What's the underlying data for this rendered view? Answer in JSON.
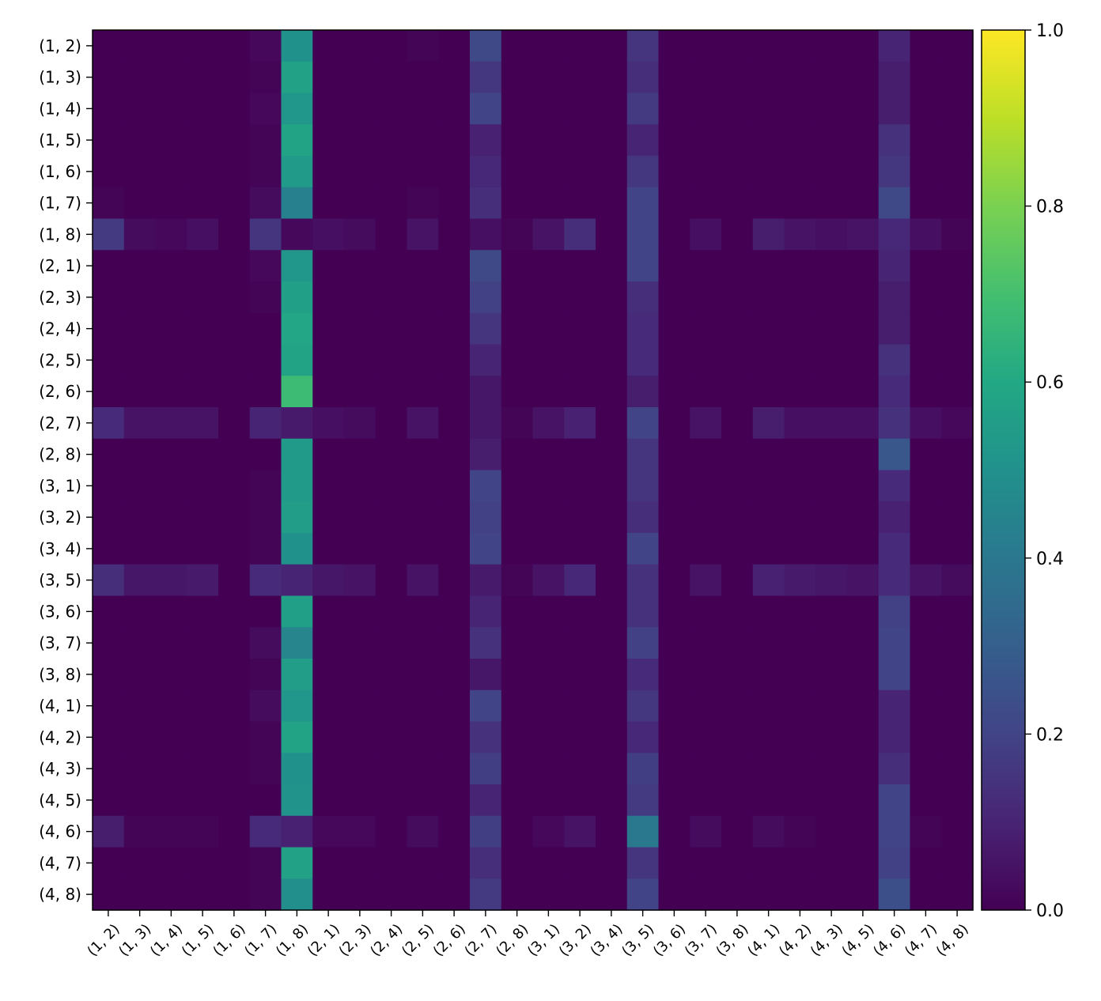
{
  "chart_data": {
    "type": "heatmap",
    "title": "",
    "xlabel": "",
    "ylabel": "",
    "colormap": "viridis",
    "vmin": 0.0,
    "vmax": 1.0,
    "colorbar_ticks": [
      "0.0",
      "0.2",
      "0.4",
      "0.6",
      "0.8",
      "1.0"
    ],
    "x_labels": [
      "(1, 2)",
      "(1, 3)",
      "(1, 4)",
      "(1, 5)",
      "(1, 6)",
      "(1, 7)",
      "(1, 8)",
      "(2, 1)",
      "(2, 3)",
      "(2, 4)",
      "(2, 5)",
      "(2, 6)",
      "(2, 7)",
      "(2, 8)",
      "(3, 1)",
      "(3, 2)",
      "(3, 4)",
      "(3, 5)",
      "(3, 6)",
      "(3, 7)",
      "(3, 8)",
      "(4, 1)",
      "(4, 2)",
      "(4, 3)",
      "(4, 5)",
      "(4, 6)",
      "(4, 7)",
      "(4, 8)"
    ],
    "y_labels": [
      "(1, 2)",
      "(1, 3)",
      "(1, 4)",
      "(1, 5)",
      "(1, 6)",
      "(1, 7)",
      "(1, 8)",
      "(2, 1)",
      "(2, 3)",
      "(2, 4)",
      "(2, 5)",
      "(2, 6)",
      "(2, 7)",
      "(2, 8)",
      "(3, 1)",
      "(3, 2)",
      "(3, 4)",
      "(3, 5)",
      "(3, 6)",
      "(3, 7)",
      "(3, 8)",
      "(4, 1)",
      "(4, 2)",
      "(4, 3)",
      "(4, 5)",
      "(4, 6)",
      "(4, 7)",
      "(4, 8)"
    ],
    "values": [
      [
        0,
        0,
        0,
        0,
        0,
        0.02,
        0.5,
        0,
        0,
        0,
        0.01,
        0,
        0.22,
        0,
        0,
        0,
        0,
        0.15,
        0,
        0,
        0,
        0,
        0,
        0,
        0,
        0.1,
        0,
        0
      ],
      [
        0,
        0,
        0,
        0,
        0,
        0.01,
        0.57,
        0,
        0,
        0,
        0,
        0,
        0.16,
        0,
        0,
        0,
        0,
        0.13,
        0,
        0,
        0,
        0,
        0,
        0,
        0,
        0.08,
        0,
        0
      ],
      [
        0,
        0,
        0,
        0,
        0,
        0.02,
        0.52,
        0,
        0,
        0,
        0,
        0,
        0.2,
        0,
        0,
        0,
        0,
        0.17,
        0,
        0,
        0,
        0,
        0,
        0,
        0,
        0.08,
        0,
        0
      ],
      [
        0,
        0,
        0,
        0,
        0,
        0.01,
        0.58,
        0,
        0,
        0,
        0,
        0,
        0.09,
        0,
        0,
        0,
        0,
        0.1,
        0,
        0,
        0,
        0,
        0,
        0,
        0,
        0.14,
        0,
        0
      ],
      [
        0,
        0,
        0,
        0,
        0,
        0.01,
        0.54,
        0,
        0,
        0,
        0,
        0,
        0.11,
        0,
        0,
        0,
        0,
        0.16,
        0,
        0,
        0,
        0,
        0,
        0,
        0,
        0.16,
        0,
        0
      ],
      [
        0.01,
        0,
        0,
        0,
        0,
        0.03,
        0.43,
        0,
        0,
        0,
        0.01,
        0,
        0.13,
        0,
        0,
        0,
        0,
        0.2,
        0,
        0,
        0,
        0,
        0,
        0,
        0,
        0.22,
        0,
        0
      ],
      [
        0.17,
        0.03,
        0.02,
        0.04,
        0,
        0.15,
        0.02,
        0.04,
        0.03,
        0,
        0.05,
        0,
        0.04,
        0.01,
        0.05,
        0.13,
        0,
        0.2,
        0,
        0.04,
        0,
        0.08,
        0.05,
        0.04,
        0.05,
        0.11,
        0.04,
        0.01
      ],
      [
        0,
        0,
        0,
        0,
        0,
        0.02,
        0.52,
        0,
        0,
        0,
        0,
        0,
        0.22,
        0,
        0,
        0,
        0,
        0.2,
        0,
        0,
        0,
        0,
        0,
        0,
        0,
        0.1,
        0,
        0
      ],
      [
        0,
        0,
        0,
        0,
        0,
        0.01,
        0.56,
        0,
        0,
        0,
        0,
        0,
        0.19,
        0,
        0,
        0,
        0,
        0.13,
        0,
        0,
        0,
        0,
        0,
        0,
        0,
        0.08,
        0,
        0
      ],
      [
        0,
        0,
        0,
        0,
        0,
        0,
        0.59,
        0,
        0,
        0,
        0,
        0,
        0.15,
        0,
        0,
        0,
        0,
        0.12,
        0,
        0,
        0,
        0,
        0,
        0,
        0,
        0.08,
        0,
        0
      ],
      [
        0,
        0,
        0,
        0,
        0,
        0,
        0.58,
        0,
        0,
        0,
        0,
        0,
        0.1,
        0,
        0,
        0,
        0,
        0.12,
        0,
        0,
        0,
        0,
        0,
        0,
        0,
        0.14,
        0,
        0
      ],
      [
        0,
        0,
        0,
        0,
        0,
        0,
        0.68,
        0,
        0,
        0,
        0,
        0,
        0.06,
        0,
        0,
        0,
        0,
        0.08,
        0,
        0,
        0,
        0,
        0,
        0,
        0,
        0.12,
        0,
        0
      ],
      [
        0.12,
        0.05,
        0.05,
        0.05,
        0,
        0.1,
        0.07,
        0.04,
        0.03,
        0,
        0.05,
        0,
        0.06,
        0.01,
        0.05,
        0.09,
        0,
        0.2,
        0,
        0.05,
        0,
        0.08,
        0.04,
        0.04,
        0.04,
        0.14,
        0.04,
        0.02
      ],
      [
        0,
        0,
        0,
        0,
        0,
        0,
        0.54,
        0,
        0,
        0,
        0,
        0,
        0.08,
        0,
        0,
        0,
        0,
        0.15,
        0,
        0,
        0,
        0,
        0,
        0,
        0,
        0.27,
        0,
        0
      ],
      [
        0,
        0,
        0,
        0,
        0,
        0.01,
        0.54,
        0,
        0,
        0,
        0,
        0,
        0.2,
        0,
        0,
        0,
        0,
        0.15,
        0,
        0,
        0,
        0,
        0,
        0,
        0,
        0.12,
        0,
        0
      ],
      [
        0,
        0,
        0,
        0,
        0,
        0.01,
        0.55,
        0,
        0,
        0,
        0,
        0,
        0.19,
        0,
        0,
        0,
        0,
        0.13,
        0,
        0,
        0,
        0,
        0,
        0,
        0,
        0.09,
        0,
        0
      ],
      [
        0,
        0,
        0,
        0,
        0,
        0.01,
        0.5,
        0,
        0,
        0,
        0,
        0,
        0.2,
        0,
        0,
        0,
        0,
        0.2,
        0,
        0,
        0,
        0,
        0,
        0,
        0,
        0.12,
        0,
        0
      ],
      [
        0.13,
        0.06,
        0.06,
        0.07,
        0,
        0.12,
        0.1,
        0.06,
        0.05,
        0,
        0.05,
        0,
        0.07,
        0.01,
        0.05,
        0.11,
        0,
        0.14,
        0,
        0.05,
        0,
        0.09,
        0.07,
        0.06,
        0.05,
        0.12,
        0.05,
        0.03
      ],
      [
        0,
        0,
        0,
        0,
        0,
        0,
        0.56,
        0,
        0,
        0,
        0,
        0,
        0.1,
        0,
        0,
        0,
        0,
        0.14,
        0,
        0,
        0,
        0,
        0,
        0,
        0,
        0.19,
        0,
        0
      ],
      [
        0,
        0,
        0,
        0,
        0,
        0.03,
        0.45,
        0,
        0,
        0,
        0,
        0,
        0.14,
        0,
        0,
        0,
        0,
        0.19,
        0,
        0,
        0,
        0,
        0,
        0,
        0,
        0.2,
        0,
        0
      ],
      [
        0,
        0,
        0,
        0,
        0,
        0.01,
        0.55,
        0,
        0,
        0,
        0,
        0,
        0.06,
        0,
        0,
        0,
        0,
        0.12,
        0,
        0,
        0,
        0,
        0,
        0,
        0,
        0.2,
        0,
        0
      ],
      [
        0,
        0,
        0,
        0,
        0,
        0.03,
        0.52,
        0,
        0,
        0,
        0,
        0,
        0.2,
        0,
        0,
        0,
        0,
        0.16,
        0,
        0,
        0,
        0,
        0,
        0,
        0,
        0.1,
        0,
        0
      ],
      [
        0,
        0,
        0,
        0,
        0,
        0.01,
        0.58,
        0,
        0,
        0,
        0,
        0,
        0.14,
        0,
        0,
        0,
        0,
        0.11,
        0,
        0,
        0,
        0,
        0,
        0,
        0,
        0.1,
        0,
        0
      ],
      [
        0,
        0,
        0,
        0,
        0,
        0.01,
        0.5,
        0,
        0,
        0,
        0,
        0,
        0.18,
        0,
        0,
        0,
        0,
        0.18,
        0,
        0,
        0,
        0,
        0,
        0,
        0,
        0.13,
        0,
        0
      ],
      [
        0,
        0,
        0,
        0,
        0,
        0,
        0.51,
        0,
        0,
        0,
        0,
        0,
        0.1,
        0,
        0,
        0,
        0,
        0.17,
        0,
        0,
        0,
        0,
        0,
        0,
        0,
        0.2,
        0,
        0
      ],
      [
        0.08,
        0.01,
        0.01,
        0.01,
        0,
        0.12,
        0.09,
        0.02,
        0.02,
        0,
        0.03,
        0,
        0.18,
        0,
        0.02,
        0.05,
        0,
        0.4,
        0,
        0.03,
        0,
        0.03,
        0.01,
        0,
        0,
        0.2,
        0.01,
        0
      ],
      [
        0,
        0,
        0,
        0,
        0,
        0.01,
        0.57,
        0,
        0,
        0,
        0,
        0,
        0.13,
        0,
        0,
        0,
        0,
        0.15,
        0,
        0,
        0,
        0,
        0,
        0,
        0,
        0.19,
        0,
        0
      ],
      [
        0,
        0,
        0,
        0,
        0,
        0.01,
        0.49,
        0,
        0,
        0,
        0,
        0,
        0.17,
        0,
        0,
        0,
        0,
        0.2,
        0,
        0,
        0,
        0,
        0,
        0,
        0,
        0.24,
        0,
        0
      ]
    ]
  }
}
